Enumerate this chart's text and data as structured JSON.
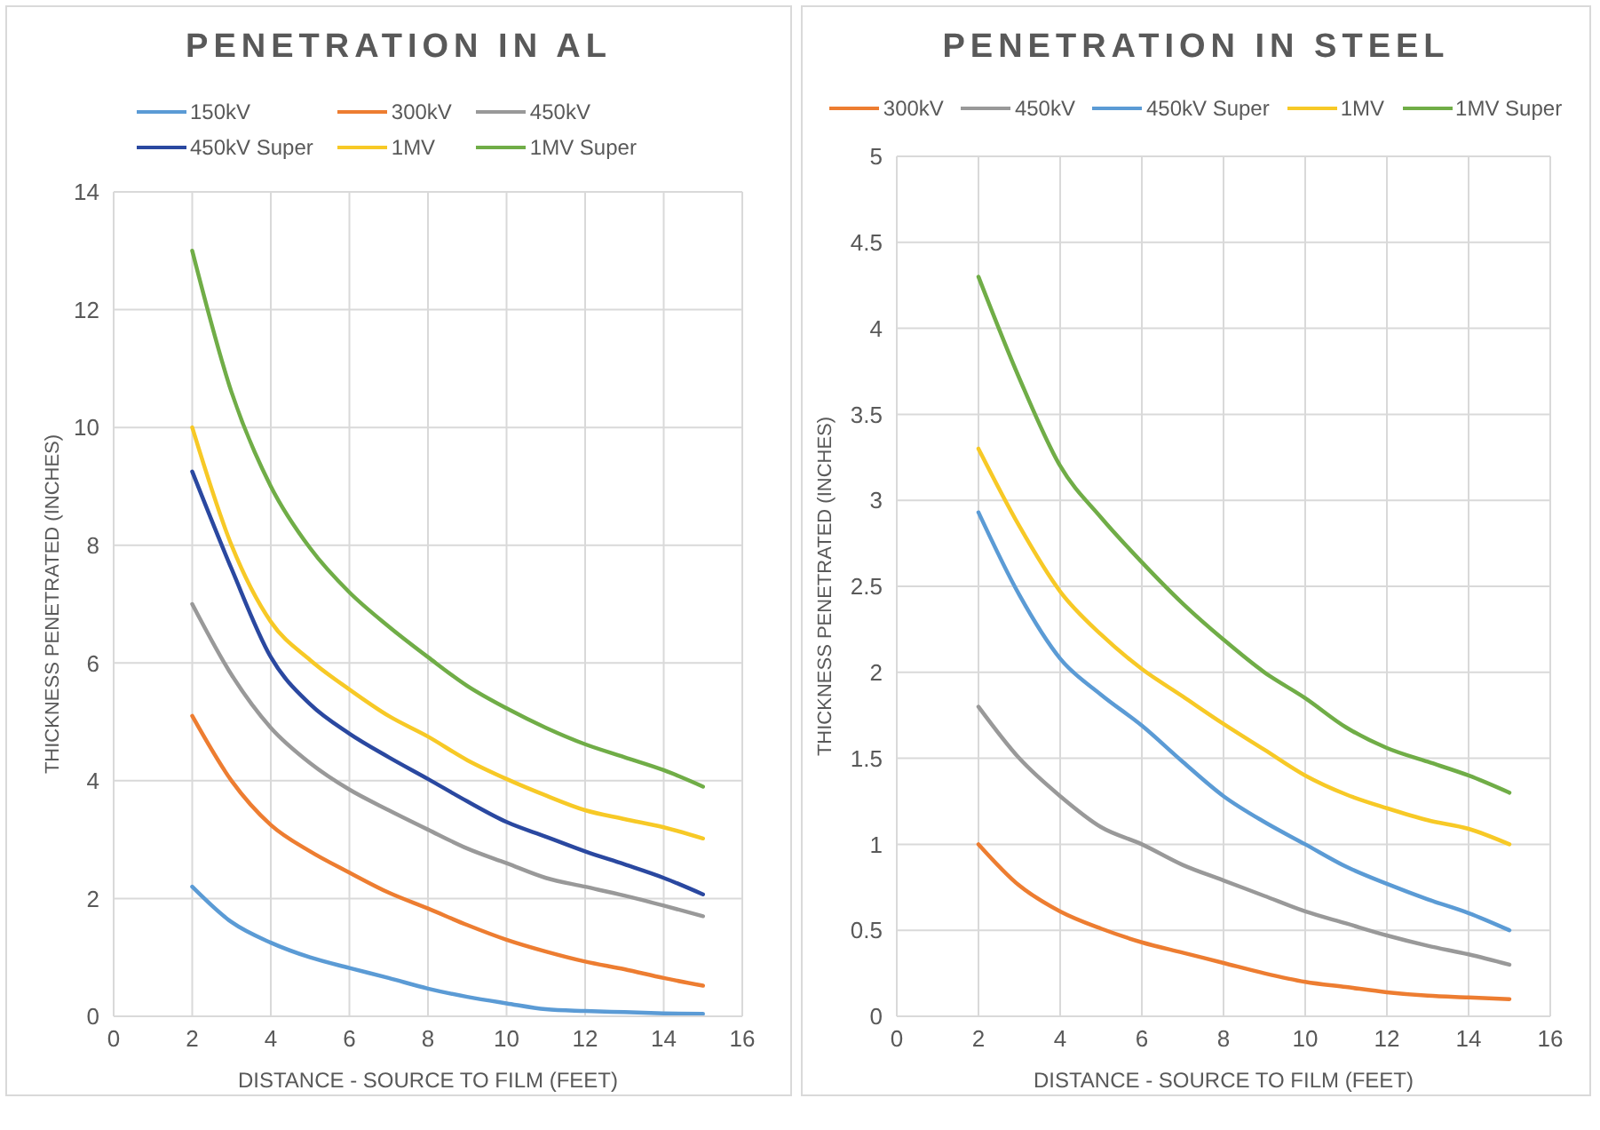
{
  "chart_data": [
    {
      "type": "line",
      "title": "PENETRATION IN AL",
      "xlabel": "DISTANCE - SOURCE TO FILM (FEET)",
      "ylabel": "THICKNESS PENETRATED (INCHES)",
      "x": [
        2,
        3,
        4,
        5,
        6,
        7,
        8,
        9,
        10,
        11,
        12,
        13,
        14,
        15
      ],
      "series": [
        {
          "name": "150kV",
          "color": "#5b9bd5",
          "values": [
            2.2,
            1.6,
            1.25,
            1.0,
            0.82,
            0.65,
            0.47,
            0.33,
            0.22,
            0.12,
            0.09,
            0.07,
            0.05,
            0.04
          ]
        },
        {
          "name": "300kV",
          "color": "#ed7d31",
          "values": [
            5.1,
            4.0,
            3.25,
            2.8,
            2.44,
            2.1,
            1.83,
            1.55,
            1.3,
            1.1,
            0.93,
            0.8,
            0.65,
            0.52
          ]
        },
        {
          "name": "450kV",
          "color": "#999999",
          "values": [
            7.0,
            5.8,
            4.9,
            4.3,
            3.85,
            3.5,
            3.17,
            2.85,
            2.6,
            2.35,
            2.2,
            2.05,
            1.88,
            1.7
          ]
        },
        {
          "name": "450kV Super",
          "color": "#2a48a0",
          "values": [
            9.25,
            7.6,
            6.1,
            5.3,
            4.8,
            4.4,
            4.03,
            3.65,
            3.3,
            3.05,
            2.8,
            2.58,
            2.35,
            2.07
          ]
        },
        {
          "name": "1MV",
          "color": "#f7c926",
          "values": [
            10.0,
            8.0,
            6.7,
            6.05,
            5.55,
            5.1,
            4.75,
            4.35,
            4.03,
            3.75,
            3.5,
            3.35,
            3.21,
            3.02
          ]
        },
        {
          "name": "1MV Super",
          "color": "#70ad47",
          "values": [
            13.0,
            10.6,
            9.0,
            7.95,
            7.2,
            6.62,
            6.1,
            5.61,
            5.23,
            4.9,
            4.62,
            4.4,
            4.18,
            3.9
          ]
        }
      ],
      "xlim": [
        0,
        16
      ],
      "xticks": [
        0,
        2,
        4,
        6,
        8,
        10,
        12,
        14,
        16
      ],
      "ylim": [
        0,
        14
      ],
      "yticks": [
        0,
        2,
        4,
        6,
        8,
        10,
        12,
        14
      ],
      "grid": true,
      "legend": "top",
      "marker": "none"
    },
    {
      "type": "line",
      "title": "PENETRATION IN STEEL",
      "xlabel": "DISTANCE - SOURCE TO FILM (FEET)",
      "ylabel": "THICKNESS PENETRATED (INCHES)",
      "x": [
        2,
        3,
        4,
        5,
        6,
        7,
        8,
        9,
        10,
        11,
        12,
        13,
        14,
        15
      ],
      "series": [
        {
          "name": "300kV",
          "color": "#ed7d31",
          "values": [
            1.0,
            0.76,
            0.61,
            0.51,
            0.43,
            0.37,
            0.31,
            0.25,
            0.2,
            0.17,
            0.14,
            0.12,
            0.11,
            0.1
          ]
        },
        {
          "name": "450kV",
          "color": "#999999",
          "values": [
            1.8,
            1.5,
            1.28,
            1.1,
            1.0,
            0.88,
            0.79,
            0.7,
            0.61,
            0.54,
            0.47,
            0.41,
            0.36,
            0.3
          ]
        },
        {
          "name": "450kV Super",
          "color": "#5b9bd5",
          "values": [
            2.93,
            2.45,
            2.08,
            1.87,
            1.69,
            1.48,
            1.28,
            1.13,
            1.0,
            0.87,
            0.77,
            0.68,
            0.6,
            0.5
          ]
        },
        {
          "name": "1MV",
          "color": "#f7c926",
          "values": [
            3.3,
            2.85,
            2.47,
            2.22,
            2.02,
            1.86,
            1.7,
            1.55,
            1.4,
            1.29,
            1.21,
            1.14,
            1.09,
            1.0
          ]
        },
        {
          "name": "1MV Super",
          "color": "#70ad47",
          "values": [
            4.3,
            3.71,
            3.2,
            2.9,
            2.64,
            2.4,
            2.19,
            2.0,
            1.85,
            1.68,
            1.56,
            1.48,
            1.4,
            1.3
          ]
        }
      ],
      "xlim": [
        0,
        16
      ],
      "xticks": [
        0,
        2,
        4,
        6,
        8,
        10,
        12,
        14,
        16
      ],
      "ylim": [
        0,
        5
      ],
      "yticks": [
        0,
        0.5,
        1,
        1.5,
        2,
        2.5,
        3,
        3.5,
        4,
        4.5,
        5
      ],
      "grid": true,
      "legend": "top",
      "marker": "none"
    }
  ]
}
